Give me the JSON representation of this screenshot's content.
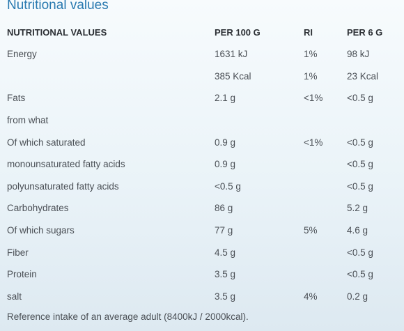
{
  "section_title": "Nutritional values",
  "table": {
    "headers": [
      "NUTRITIONAL VALUES",
      "PER 100 G",
      "RI",
      "PER 6 G"
    ],
    "rows": [
      [
        "Energy",
        "1631 kJ",
        "1%",
        "98 kJ"
      ],
      [
        "",
        "385 Kcal",
        "1%",
        "23 Kcal"
      ],
      [
        "Fats",
        "2.1 g",
        "<1%",
        "<0.5 g"
      ],
      [
        "from what",
        "",
        "",
        ""
      ],
      [
        "Of which saturated",
        "0.9 g",
        "<1%",
        "<0.5 g"
      ],
      [
        "monounsaturated fatty acids",
        "0.9 g",
        "",
        "<0.5 g"
      ],
      [
        "polyunsaturated fatty acids",
        "<0.5 g",
        "",
        "<0.5 g"
      ],
      [
        "Carbohydrates",
        "86 g",
        "",
        "5.2 g"
      ],
      [
        "Of which sugars",
        "77 g",
        "5%",
        "4.6 g"
      ],
      [
        "Fiber",
        "4.5 g",
        "",
        "<0.5 g"
      ],
      [
        "Protein",
        "3.5 g",
        "",
        "<0.5 g"
      ],
      [
        "salt",
        "3.5 g",
        "4%",
        "0.2 g"
      ]
    ]
  },
  "footnote": "Reference intake of an average adult (8400kJ / 2000kcal)."
}
